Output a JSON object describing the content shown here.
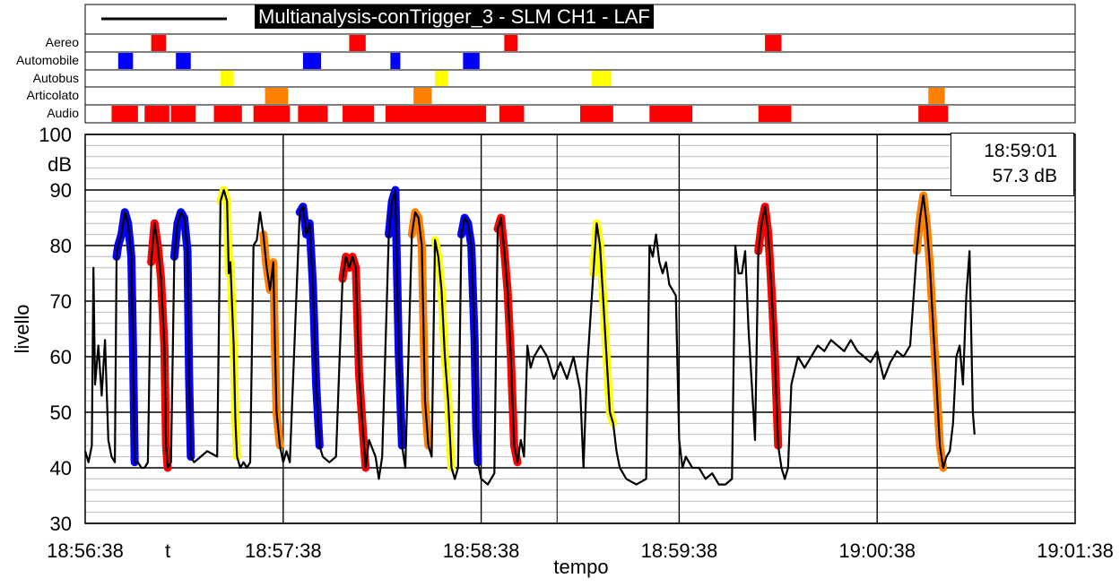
{
  "chart_data": {
    "type": "line",
    "title": "Multianalysis-conTrigger_3 - SLM CH1 - LAF",
    "xlabel": "tempo",
    "ylabel": "livello",
    "y_unit": "dB",
    "ylim": [
      30,
      100
    ],
    "y_ticks": [
      "30",
      "40",
      "50",
      "60",
      "70",
      "80",
      "90",
      "100"
    ],
    "x_ticks": [
      "18:56:38",
      "t",
      "18:57:38",
      "18:58:38",
      "18:59:38",
      "19:00:38",
      "19:01:38"
    ],
    "x_range_seconds": [
      0,
      300
    ],
    "cursor": {
      "time": "18:59:01",
      "level": "57.3 dB"
    },
    "grid": true,
    "tracks": [
      {
        "name": "Aereo",
        "color": "#ff0000",
        "events": [
          [
            20,
            24.5
          ],
          [
            80,
            85
          ],
          [
            127,
            131
          ],
          [
            206,
            211
          ]
        ]
      },
      {
        "name": "Automobile",
        "color": "#0000ff",
        "events": [
          [
            10,
            14.5
          ],
          [
            27.5,
            32
          ],
          [
            66,
            71.5
          ],
          [
            92.5,
            95.5
          ],
          [
            114.5,
            119.5
          ]
        ]
      },
      {
        "name": "Autobus",
        "color": "#ffff00",
        "events": [
          [
            41,
            45
          ],
          [
            106,
            110
          ],
          [
            153.5,
            159.5
          ]
        ]
      },
      {
        "name": "Articolato",
        "color": "#ff8000",
        "events": [
          [
            54.5,
            61.5
          ],
          [
            99.5,
            105
          ],
          [
            255.5,
            260.5
          ]
        ]
      },
      {
        "name": "Audio",
        "color": "#ff0000",
        "events": [
          [
            8,
            16
          ],
          [
            18,
            25.5
          ],
          [
            26,
            33.5
          ],
          [
            39,
            47.5
          ],
          [
            51,
            62
          ],
          [
            64.5,
            73.5
          ],
          [
            78,
            87.5
          ],
          [
            91,
            121.5
          ],
          [
            125.5,
            133
          ],
          [
            150,
            160
          ],
          [
            171,
            184
          ],
          [
            204,
            214
          ],
          [
            252.5,
            261.5
          ]
        ]
      }
    ],
    "series": [
      {
        "name": "LAF",
        "color": "#000000",
        "points": [
          [
            0,
            43
          ],
          [
            1,
            41
          ],
          [
            2,
            44
          ],
          [
            2.5,
            76
          ],
          [
            3,
            55
          ],
          [
            4,
            62
          ],
          [
            5,
            53
          ],
          [
            6,
            63
          ],
          [
            7,
            45
          ],
          [
            8,
            42
          ],
          [
            9,
            41
          ],
          [
            9.5,
            78
          ],
          [
            10,
            80
          ],
          [
            11,
            82
          ],
          [
            12,
            86
          ],
          [
            13,
            84
          ],
          [
            14,
            78
          ],
          [
            14.5,
            61
          ],
          [
            15,
            41
          ],
          [
            16,
            41
          ],
          [
            17,
            40
          ],
          [
            18,
            40
          ],
          [
            19,
            41
          ],
          [
            20,
            77
          ],
          [
            21,
            84
          ],
          [
            22,
            80
          ],
          [
            23,
            74
          ],
          [
            24,
            62
          ],
          [
            24.5,
            44
          ],
          [
            25,
            40
          ],
          [
            26,
            41
          ],
          [
            27,
            78
          ],
          [
            28,
            84
          ],
          [
            29,
            86
          ],
          [
            30,
            85
          ],
          [
            31,
            79
          ],
          [
            31.5,
            56
          ],
          [
            32,
            42
          ],
          [
            33,
            41
          ],
          [
            35,
            42
          ],
          [
            37,
            43
          ],
          [
            40,
            42
          ],
          [
            41,
            88
          ],
          [
            42,
            90
          ],
          [
            43,
            88
          ],
          [
            43.5,
            75
          ],
          [
            44,
            77
          ],
          [
            45,
            62
          ],
          [
            45.5,
            49
          ],
          [
            46,
            42
          ],
          [
            47,
            40
          ],
          [
            48,
            41
          ],
          [
            49,
            40
          ],
          [
            50,
            41
          ],
          [
            51,
            80
          ],
          [
            52,
            81
          ],
          [
            53,
            86
          ],
          [
            54,
            82
          ],
          [
            55,
            76
          ],
          [
            56,
            72
          ],
          [
            57,
            77
          ],
          [
            57.5,
            62
          ],
          [
            58,
            50
          ],
          [
            59,
            44
          ],
          [
            60,
            41
          ],
          [
            61,
            43
          ],
          [
            62,
            41
          ],
          [
            65,
            86
          ],
          [
            66,
            87
          ],
          [
            67,
            82
          ],
          [
            68,
            84
          ],
          [
            69,
            73
          ],
          [
            70,
            55
          ],
          [
            71,
            44
          ],
          [
            72,
            42
          ],
          [
            74,
            41
          ],
          [
            76,
            42
          ],
          [
            78,
            74
          ],
          [
            79,
            78
          ],
          [
            80,
            76
          ],
          [
            81,
            78
          ],
          [
            82,
            76
          ],
          [
            83,
            57
          ],
          [
            84,
            48
          ],
          [
            85,
            40
          ],
          [
            86,
            45
          ],
          [
            88,
            42
          ],
          [
            89,
            38
          ],
          [
            90,
            42
          ],
          [
            92,
            82
          ],
          [
            93,
            88
          ],
          [
            94,
            90
          ],
          [
            95,
            61
          ],
          [
            96,
            44
          ],
          [
            97,
            40
          ],
          [
            99,
            82
          ],
          [
            100,
            86
          ],
          [
            101,
            85
          ],
          [
            102,
            80
          ],
          [
            103,
            52
          ],
          [
            104,
            44
          ],
          [
            105,
            42
          ],
          [
            106,
            81
          ],
          [
            107,
            78
          ],
          [
            108,
            72
          ],
          [
            109,
            60
          ],
          [
            110,
            52
          ],
          [
            111,
            40
          ],
          [
            112,
            38
          ],
          [
            113,
            40
          ],
          [
            114,
            82
          ],
          [
            115,
            85
          ],
          [
            116,
            84
          ],
          [
            117,
            80
          ],
          [
            118,
            63
          ],
          [
            118.5,
            47
          ],
          [
            119,
            41
          ],
          [
            120,
            38
          ],
          [
            122,
            37
          ],
          [
            124,
            39
          ],
          [
            125,
            83
          ],
          [
            126,
            85
          ],
          [
            127,
            79
          ],
          [
            128,
            72
          ],
          [
            129,
            60
          ],
          [
            130,
            44
          ],
          [
            131,
            41
          ],
          [
            132,
            45
          ],
          [
            133,
            42
          ],
          [
            134,
            62
          ],
          [
            135,
            58
          ],
          [
            136,
            60
          ],
          [
            138,
            62
          ],
          [
            140,
            60
          ],
          [
            142,
            56
          ],
          [
            144,
            59
          ],
          [
            146,
            56
          ],
          [
            148,
            60
          ],
          [
            150,
            54
          ],
          [
            151,
            40
          ],
          [
            152,
            57
          ],
          [
            154,
            75
          ],
          [
            155,
            84
          ],
          [
            156,
            80
          ],
          [
            157,
            70
          ],
          [
            158,
            60
          ],
          [
            159,
            50
          ],
          [
            160,
            48
          ],
          [
            161,
            43
          ],
          [
            162,
            40
          ],
          [
            164,
            38
          ],
          [
            167,
            37
          ],
          [
            170,
            38
          ],
          [
            171,
            80
          ],
          [
            172,
            78
          ],
          [
            173,
            82
          ],
          [
            174,
            77
          ],
          [
            175,
            75
          ],
          [
            176,
            77
          ],
          [
            177,
            73
          ],
          [
            178,
            72
          ],
          [
            179,
            71
          ],
          [
            180,
            45
          ],
          [
            181,
            40
          ],
          [
            182,
            42
          ],
          [
            184,
            40
          ],
          [
            186,
            40
          ],
          [
            188,
            38
          ],
          [
            190,
            39
          ],
          [
            192,
            37
          ],
          [
            194,
            37
          ],
          [
            196,
            38
          ],
          [
            197,
            80
          ],
          [
            198,
            75
          ],
          [
            199,
            75
          ],
          [
            200,
            79
          ],
          [
            201,
            65
          ],
          [
            202,
            55
          ],
          [
            203,
            45
          ],
          [
            204,
            79
          ],
          [
            205,
            84
          ],
          [
            206,
            87
          ],
          [
            207,
            82
          ],
          [
            208,
            72
          ],
          [
            209,
            60
          ],
          [
            210,
            44
          ],
          [
            211,
            40
          ],
          [
            212,
            38
          ],
          [
            213,
            40
          ],
          [
            214,
            55
          ],
          [
            216,
            60
          ],
          [
            218,
            58
          ],
          [
            220,
            60
          ],
          [
            222,
            62
          ],
          [
            224,
            61
          ],
          [
            226,
            63
          ],
          [
            228,
            62
          ],
          [
            230,
            61
          ],
          [
            232,
            63
          ],
          [
            234,
            61
          ],
          [
            236,
            60
          ],
          [
            238,
            59
          ],
          [
            240,
            61
          ],
          [
            242,
            56
          ],
          [
            244,
            59
          ],
          [
            246,
            61
          ],
          [
            248,
            60
          ],
          [
            250,
            62
          ],
          [
            252,
            79
          ],
          [
            253,
            85
          ],
          [
            254,
            89
          ],
          [
            255,
            84
          ],
          [
            256,
            76
          ],
          [
            257,
            65
          ],
          [
            258,
            55
          ],
          [
            259,
            44
          ],
          [
            260,
            40
          ],
          [
            261,
            42
          ],
          [
            262,
            43
          ],
          [
            263,
            48
          ],
          [
            264,
            60
          ],
          [
            265,
            62
          ],
          [
            266,
            55
          ],
          [
            267,
            71
          ],
          [
            268,
            79
          ],
          [
            269,
            50
          ],
          [
            269.5,
            46
          ]
        ]
      }
    ],
    "highlight_segments": [
      {
        "color": "#0000ff",
        "x": [
          9.5,
          15
        ]
      },
      {
        "color": "#ff0000",
        "x": [
          20,
          25
        ]
      },
      {
        "color": "#0000ff",
        "x": [
          27,
          32
        ]
      },
      {
        "color": "#ffff00",
        "x": [
          41,
          46
        ]
      },
      {
        "color": "#ff8000",
        "x": [
          54,
          59
        ]
      },
      {
        "color": "#0000ff",
        "x": [
          65,
          71
        ]
      },
      {
        "color": "#ff0000",
        "x": [
          78,
          85
        ]
      },
      {
        "color": "#0000ff",
        "x": [
          92,
          96
        ]
      },
      {
        "color": "#ff8000",
        "x": [
          99,
          104
        ]
      },
      {
        "color": "#ffff00",
        "x": [
          106,
          111
        ]
      },
      {
        "color": "#0000ff",
        "x": [
          114,
          119
        ]
      },
      {
        "color": "#ff0000",
        "x": [
          125,
          131
        ]
      },
      {
        "color": "#ffff00",
        "x": [
          154,
          160
        ]
      },
      {
        "color": "#ff0000",
        "x": [
          204,
          210
        ]
      },
      {
        "color": "#ff8000",
        "x": [
          252,
          260
        ]
      }
    ]
  }
}
